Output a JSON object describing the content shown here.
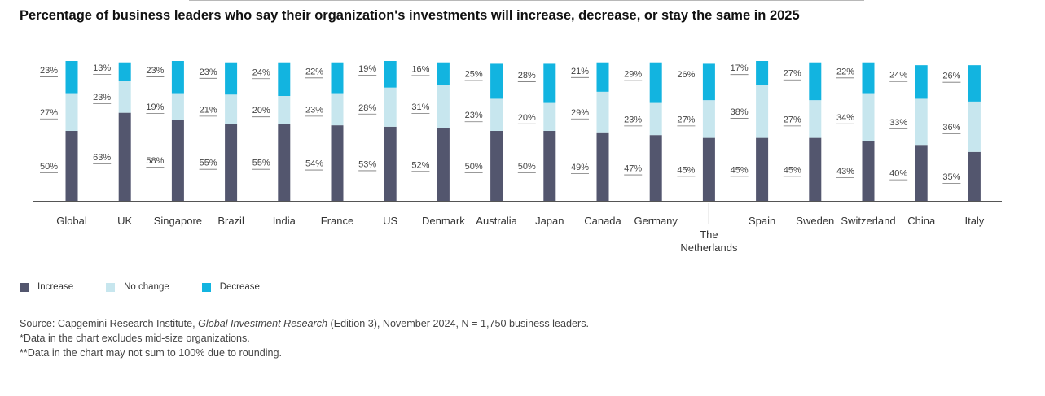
{
  "title": "Percentage of business leaders who say their organization's investments will increase, decrease, or stay the same in 2025",
  "colors": {
    "increase": "#53566e",
    "no_change": "#c7e6ee",
    "decrease": "#12b4e0"
  },
  "chart_data": {
    "type": "bar",
    "stacked": true,
    "categories": [
      "Global",
      "UK",
      "Singapore",
      "Brazil",
      "India",
      "France",
      "US",
      "Denmark",
      "Australia",
      "Japan",
      "Canada",
      "Germany",
      "The Netherlands",
      "Spain",
      "Sweden",
      "Switzerland",
      "China",
      "Italy"
    ],
    "series": [
      {
        "name": "Increase",
        "values": [
          50,
          63,
          58,
          55,
          55,
          54,
          53,
          52,
          50,
          50,
          49,
          47,
          45,
          45,
          45,
          43,
          40,
          35
        ]
      },
      {
        "name": "No change",
        "values": [
          27,
          23,
          19,
          21,
          20,
          23,
          28,
          31,
          23,
          20,
          29,
          23,
          27,
          38,
          27,
          34,
          33,
          36
        ]
      },
      {
        "name": "Decrease",
        "values": [
          23,
          13,
          23,
          23,
          24,
          22,
          19,
          16,
          25,
          28,
          21,
          29,
          26,
          17,
          27,
          22,
          24,
          26
        ]
      }
    ],
    "value_suffix": "%",
    "legend_position": "bottom-left",
    "grid": false
  },
  "legend": {
    "increase_label": "Increase",
    "no_change_label": "No change",
    "decrease_label": "Decrease"
  },
  "footnotes": {
    "source_prefix": "Source: Capgemini Research Institute, ",
    "source_title": "Global Investment Research",
    "source_suffix": " (Edition 3), November 2024, N = 1,750 business leaders.",
    "note1": "*Data in the chart excludes mid-size organizations.",
    "note2": "**Data in the chart may not sum to 100% due to rounding."
  }
}
